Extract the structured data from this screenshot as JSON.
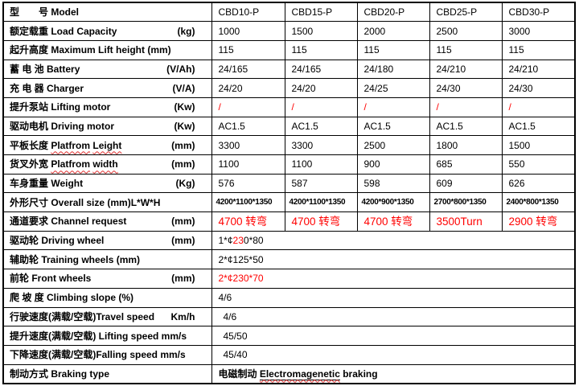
{
  "colors": {
    "accent_red": "#ff0000",
    "text": "#000000",
    "grid": "#000000"
  },
  "table": {
    "header": {
      "label_cn": "型　　号",
      "label_en": "Model",
      "models": [
        "CBD10-P",
        "CBD15-P",
        "CBD20-P",
        "CBD25-P",
        "CBD30-P"
      ]
    },
    "rows": [
      {
        "label_cn": "额定载重 ",
        "label_en": "Load Capacity",
        "unit": "(kg)",
        "values": [
          "1000",
          "1500",
          "2000",
          "2500",
          "3000"
        ]
      },
      {
        "label_cn": "起升高度 ",
        "label_en": "Maximum Lift height (mm)",
        "values": [
          "115",
          "115",
          "115",
          "115",
          "115"
        ]
      },
      {
        "label_cn": "蓄 电 池 ",
        "label_en": "Battery",
        "unit": "(V/Ah)",
        "values": [
          "24/165",
          "24/165",
          "24/180",
          "24/210",
          "24/210"
        ]
      },
      {
        "label_cn": "充 电 器 ",
        "label_en": "Charger",
        "unit": "(V/A)",
        "values": [
          "24/20",
          "24/20",
          "24/25",
          "24/30",
          "24/30"
        ]
      },
      {
        "label_cn": "提升泵站 ",
        "label_en": "Lifting motor",
        "unit": "(Kw)",
        "values": [
          "/",
          "/",
          "/",
          "/",
          "/"
        ],
        "value_style": "red"
      },
      {
        "label_cn": "驱动电机 ",
        "label_en": "Driving motor",
        "unit": "(Kw)",
        "values": [
          "AC1.5",
          "AC1.5",
          "AC1.5",
          "AC1.5",
          "AC1.5"
        ]
      },
      {
        "label_cn": "平板长度 ",
        "label_en": "Platfrom Leight",
        "spell": true,
        "unit": "(mm)",
        "values": [
          "3300",
          "3300",
          "2500",
          "1800",
          "1500"
        ]
      },
      {
        "label_cn": "货叉外宽 ",
        "label_en": "Platfrom width",
        "spell": true,
        "unit": "(mm)",
        "values": [
          "1100",
          "1100",
          "900",
          "685",
          "550"
        ]
      },
      {
        "label_cn": "车身重量 ",
        "label_en": "Weight",
        "unit": "(Kg)",
        "values": [
          "576",
          "587",
          "598",
          "609",
          "626"
        ]
      },
      {
        "label_cn": "外形尺寸 ",
        "label_en": "Overall size (mm)L*W*H",
        "values": [
          "4200*1100*1350",
          "4200*1100*1350",
          "4200*900*1350",
          "2700*800*1350",
          "2400*800*1350"
        ],
        "value_style": "small-bold"
      },
      {
        "label_cn": "通道要求 ",
        "label_en": "Channel request",
        "unit": "(mm)",
        "values": [
          "4700 转弯",
          "4700 转弯",
          "4700 转弯",
          "3500Turn",
          "2900 转弯"
        ],
        "value_style": "red-large"
      },
      {
        "label_cn": "驱动轮 ",
        "label_en": "Driving wheel",
        "unit": "(mm)",
        "merged": true,
        "segments": [
          {
            "t": "1*¢"
          },
          {
            "t": "23",
            "c": "red"
          },
          {
            "t": "0*80"
          }
        ]
      },
      {
        "label_cn": "辅助轮 ",
        "label_en": "Training wheels (mm)",
        "merged": true,
        "segments": [
          {
            "t": "2*¢125*50"
          }
        ]
      },
      {
        "label_cn": "前轮 ",
        "label_en": "Front wheels",
        "unit": "(mm)",
        "merged": true,
        "segments": [
          {
            "t": "2*¢230*70",
            "c": "red"
          }
        ]
      },
      {
        "label_cn": "爬 坡 度 ",
        "label_en": "Climbing slope (%)",
        "merged": true,
        "segments": [
          {
            "t": "4/6"
          }
        ]
      },
      {
        "label_cn": "行驶速度(满载/空载)",
        "label_en": "Travel speed",
        "unit": "Km/h",
        "merged": true,
        "indent": true,
        "segments": [
          {
            "t": "4/6"
          }
        ]
      },
      {
        "label_cn": "提升速度(满载/空载) ",
        "label_en": "Lifting speed mm/s",
        "merged": true,
        "indent": true,
        "segments": [
          {
            "t": "45/50"
          }
        ]
      },
      {
        "label_cn": "下降速度(满载/空载)",
        "label_en": "Falling speed mm/s",
        "merged": true,
        "indent": true,
        "segments": [
          {
            "t": "45/40"
          }
        ]
      },
      {
        "label_cn": "制动方式 ",
        "label_en": "Braking type",
        "merged": true,
        "value_bold": true,
        "segments": [
          {
            "t": "电磁制动 "
          },
          {
            "t": "Electromagenetic",
            "u": true,
            "sp": true
          },
          {
            "t": " braking"
          }
        ]
      }
    ]
  }
}
